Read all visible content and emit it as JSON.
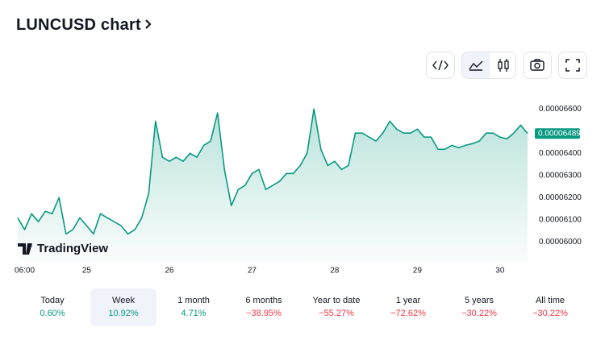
{
  "header": {
    "title": "LUNCUSD chart"
  },
  "chart_data": {
    "type": "area",
    "watermark": "TradingView",
    "color": "#089981",
    "values": [
      6.109e-05,
      6.055e-05,
      6.127e-05,
      6.091e-05,
      6.138e-05,
      6.127e-05,
      6.2e-05,
      6.036e-05,
      6.055e-05,
      6.109e-05,
      6.073e-05,
      6.036e-05,
      6.127e-05,
      6.109e-05,
      6.091e-05,
      6.073e-05,
      6.036e-05,
      6.055e-05,
      6.109e-05,
      6.218e-05,
      6.545e-05,
      6.382e-05,
      6.364e-05,
      6.382e-05,
      6.364e-05,
      6.4e-05,
      6.382e-05,
      6.436e-05,
      6.455e-05,
      6.582e-05,
      6.327e-05,
      6.164e-05,
      6.236e-05,
      6.255e-05,
      6.309e-05,
      6.327e-05,
      6.236e-05,
      6.255e-05,
      6.273e-05,
      6.309e-05,
      6.309e-05,
      6.345e-05,
      6.4e-05,
      6.6e-05,
      6.418e-05,
      6.345e-05,
      6.364e-05,
      6.327e-05,
      6.345e-05,
      6.491e-05,
      6.491e-05,
      6.473e-05,
      6.455e-05,
      6.491e-05,
      6.545e-05,
      6.509e-05,
      6.491e-05,
      6.491e-05,
      6.509e-05,
      6.473e-05,
      6.473e-05,
      6.418e-05,
      6.418e-05,
      6.436e-05,
      6.425e-05,
      6.436e-05,
      6.444e-05,
      6.455e-05,
      6.491e-05,
      6.491e-05,
      6.473e-05,
      6.465e-05,
      6.491e-05,
      6.527e-05,
      6.489e-05
    ],
    "last_price": 6.489e-05,
    "xlim": [
      0,
      74
    ],
    "xticks": [
      {
        "value": 1,
        "label": "06:00"
      },
      {
        "value": 10,
        "label": "25"
      },
      {
        "value": 22,
        "label": "26"
      },
      {
        "value": 34,
        "label": "27"
      },
      {
        "value": 46,
        "label": "28"
      },
      {
        "value": 58,
        "label": "29"
      },
      {
        "value": 70,
        "label": "30"
      }
    ],
    "ylim": [
      5.91e-05,
      6.71e-05
    ],
    "yticks": [
      {
        "value": 6e-05,
        "label": "0.00006000"
      },
      {
        "value": 6.1e-05,
        "label": "0.00006100"
      },
      {
        "value": 6.2e-05,
        "label": "0.00006200"
      },
      {
        "value": 6.3e-05,
        "label": "0.00006300"
      },
      {
        "value": 6.4e-05,
        "label": "0.00006400"
      },
      {
        "value": 6.6e-05,
        "label": "0.00006600"
      }
    ],
    "grid": false
  },
  "periods": [
    {
      "label": "Today",
      "change": "0.60%",
      "color": "#089981"
    },
    {
      "label": "Week",
      "change": "10.92%",
      "color": "#089981",
      "active": true
    },
    {
      "label": "1 month",
      "change": "4.71%",
      "color": "#089981"
    },
    {
      "label": "6 months",
      "change": "−38.95%",
      "color": "#f23645"
    },
    {
      "label": "Year to date",
      "change": "−55.27%",
      "color": "#f23645"
    },
    {
      "label": "1 year",
      "change": "−72.62%",
      "color": "#f23645"
    },
    {
      "label": "5 years",
      "change": "−30.22%",
      "color": "#f23645"
    },
    {
      "label": "All time",
      "change": "−30.22%",
      "color": "#f23645"
    }
  ]
}
